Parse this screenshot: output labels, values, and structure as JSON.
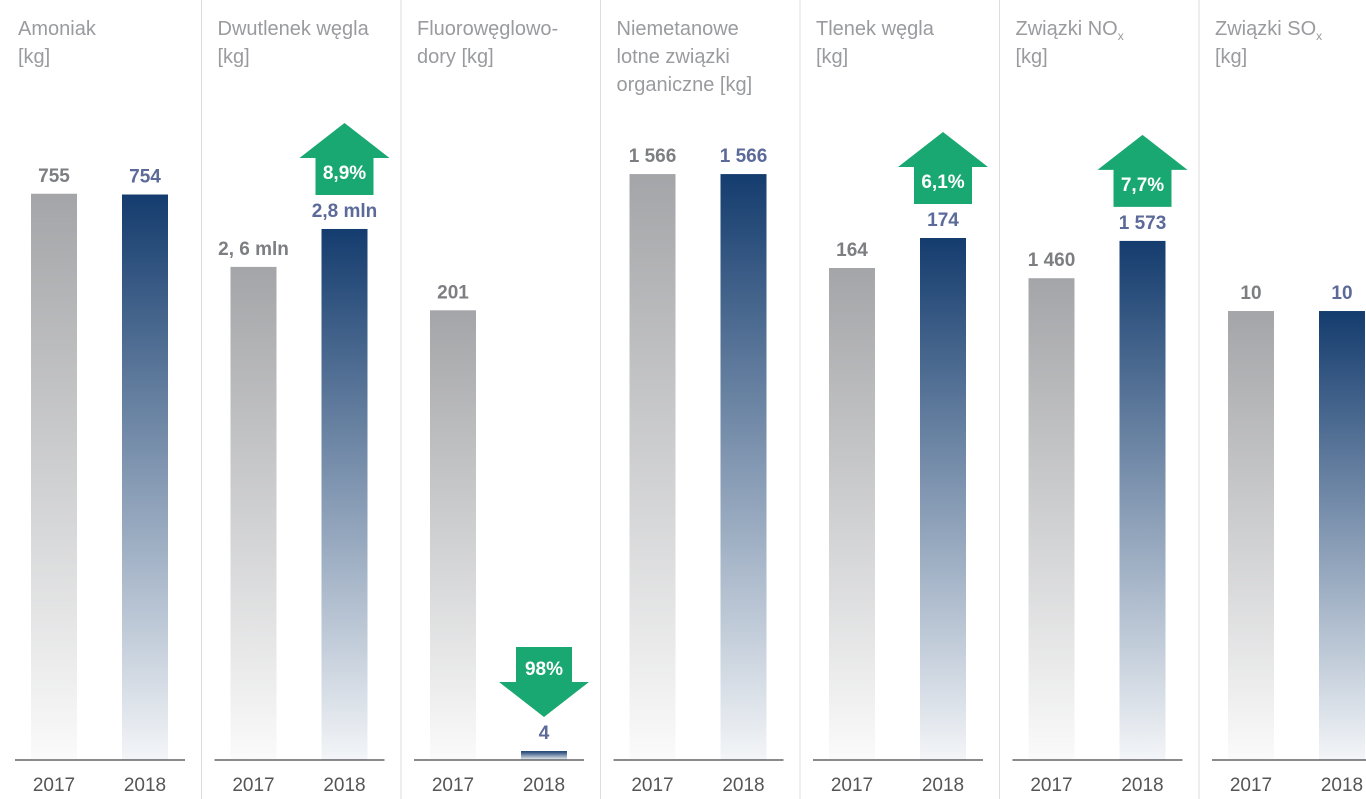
{
  "chart_data": [
    {
      "type": "bar",
      "title": [
        "Amoniak",
        "[kg]"
      ],
      "categories": [
        "2017",
        "2018"
      ],
      "values": [
        755,
        754
      ],
      "colors": [
        "#a4a5a8",
        "#143c6e"
      ],
      "ylim": [
        0,
        880
      ]
    },
    {
      "type": "bar",
      "title": [
        "Dwutlenek węgla",
        "[kg]"
      ],
      "categories": [
        "2017",
        "2018"
      ],
      "values": [
        2600000,
        2800000
      ],
      "value_labels": [
        "2, 6 mln",
        "2,8 mln"
      ],
      "colors": [
        "#a4a5a8",
        "#143c6e"
      ],
      "ylim": [
        0,
        3480000
      ],
      "change": {
        "label": "8,9%",
        "direction": "up",
        "color": "#1aa872"
      }
    },
    {
      "type": "bar",
      "title": [
        "Fluorowęglowo-",
        "dory [kg]"
      ],
      "categories": [
        "2017",
        "2018"
      ],
      "values": [
        201,
        4
      ],
      "colors": [
        "#a4a5a8",
        "#143c6e"
      ],
      "ylim": [
        0,
        295
      ],
      "change": {
        "label": "98%",
        "direction": "down",
        "color": "#1aa872"
      }
    },
    {
      "type": "bar",
      "title": [
        "Niemetanowe",
        "lotne związki",
        "organiczne [kg]"
      ],
      "categories": [
        "2017",
        "2018"
      ],
      "values": [
        1566,
        1566
      ],
      "value_labels": [
        "1 566",
        "1 566"
      ],
      "colors": [
        "#a4a5a8",
        "#143c6e"
      ],
      "ylim": [
        0,
        1764
      ]
    },
    {
      "type": "bar",
      "title": [
        "Tlenek węgla",
        "[kg]"
      ],
      "categories": [
        "2017",
        "2018"
      ],
      "values": [
        164,
        174
      ],
      "colors": [
        "#a4a5a8",
        "#143c6e"
      ],
      "ylim": [
        0,
        220
      ],
      "change": {
        "label": "6,1%",
        "direction": "up",
        "color": "#1aa872"
      }
    },
    {
      "type": "bar",
      "title": [
        "Związki NO",
        "[kg]"
      ],
      "title_subscript": "x",
      "categories": [
        "2017",
        "2018"
      ],
      "values": [
        1460,
        1573
      ],
      "value_labels": [
        "1 460",
        "1 573"
      ],
      "colors": [
        "#a4a5a8",
        "#143c6e"
      ],
      "ylim": [
        0,
        2000
      ],
      "change": {
        "label": "7,7%",
        "direction": "up",
        "color": "#1aa872"
      }
    },
    {
      "type": "bar",
      "title": [
        "Związki SO",
        "[kg]"
      ],
      "title_subscript": "x",
      "categories": [
        "2017",
        "2018"
      ],
      "values": [
        10,
        10
      ],
      "colors": [
        "#a4a5a8",
        "#143c6e"
      ],
      "ylim": [
        0,
        14.7
      ]
    }
  ]
}
